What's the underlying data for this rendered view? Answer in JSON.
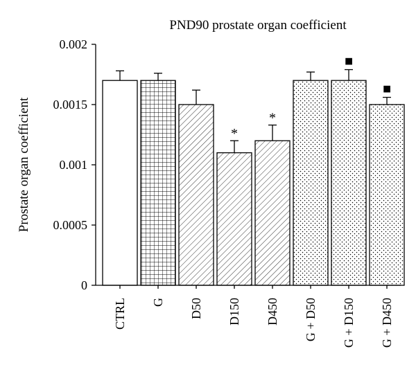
{
  "chart_data": {
    "type": "bar",
    "title": "PND90 prostate organ coefficient",
    "xlabel": "",
    "ylabel": "Prostate organ coefficient",
    "ylim": [
      0,
      0.002
    ],
    "yticks": [
      {
        "value": 0,
        "label": "0"
      },
      {
        "value": 0.0005,
        "label": "0.0005"
      },
      {
        "value": 0.001,
        "label": "0.001"
      },
      {
        "value": 0.0015,
        "label": "0.0015"
      },
      {
        "value": 0.002,
        "label": "0.002"
      }
    ],
    "categories": [
      "CTRL",
      "G",
      "D50",
      "D150",
      "D450",
      "G + D50",
      "G + D150",
      "G + D450"
    ],
    "values": [
      0.0017,
      0.0017,
      0.0015,
      0.0011,
      0.0012,
      0.0017,
      0.0017,
      0.0015
    ],
    "errors": [
      8e-05,
      6e-05,
      0.00012,
      0.0001,
      0.00013,
      7e-05,
      9e-05,
      6e-05
    ],
    "patterns": [
      "none",
      "grid",
      "diagonal",
      "diagonal",
      "diagonal",
      "dots",
      "dots",
      "dots"
    ],
    "markers": [
      "",
      "",
      "",
      "*",
      "*",
      "",
      "■",
      "■"
    ],
    "grid": false,
    "legend": "none"
  }
}
